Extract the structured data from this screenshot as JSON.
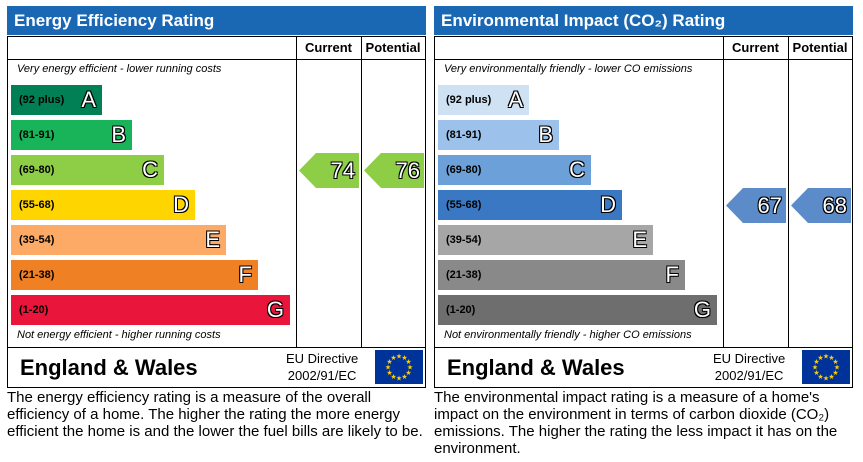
{
  "chart_data": [
    {
      "type": "bar",
      "title": "Energy Efficiency Rating",
      "columns": [
        "Current",
        "Potential"
      ],
      "top_caption": "Very energy efficient - lower running costs",
      "bottom_caption": "Not energy efficient - higher running costs",
      "bands": [
        {
          "range": "(92 plus)",
          "letter": "A",
          "color": "#008054"
        },
        {
          "range": "(81-91)",
          "letter": "B",
          "color": "#19b459"
        },
        {
          "range": "(69-80)",
          "letter": "C",
          "color": "#8dce46"
        },
        {
          "range": "(55-68)",
          "letter": "D",
          "color": "#ffd500"
        },
        {
          "range": "(39-54)",
          "letter": "E",
          "color": "#fcaa65"
        },
        {
          "range": "(21-38)",
          "letter": "F",
          "color": "#ef8023"
        },
        {
          "range": "(1-20)",
          "letter": "G",
          "color": "#e9153b"
        }
      ],
      "current": {
        "value": 74,
        "band": "C",
        "color": "#8dce46"
      },
      "potential": {
        "value": 76,
        "band": "C",
        "color": "#8dce46"
      },
      "region": "England & Wales",
      "directive": [
        "EU Directive",
        "2002/91/EC"
      ],
      "description": "The energy efficiency rating is a measure of the overall efficiency of a home. The higher the rating the more energy efficient the home is and the lower the fuel bills are likely to be."
    },
    {
      "type": "bar",
      "title": "Environmental Impact (CO₂) Rating",
      "columns": [
        "Current",
        "Potential"
      ],
      "top_caption": "Very environmentally friendly - lower CO  emissions",
      "bottom_caption": "Not environmentally friendly - higher CO  emissions",
      "bands": [
        {
          "range": "(92 plus)",
          "letter": "A",
          "color": "#cfe2f3"
        },
        {
          "range": "(81-91)",
          "letter": "B",
          "color": "#9cc1ea"
        },
        {
          "range": "(69-80)",
          "letter": "C",
          "color": "#6ca0d9"
        },
        {
          "range": "(55-68)",
          "letter": "D",
          "color": "#3a78c3"
        },
        {
          "range": "(39-54)",
          "letter": "E",
          "color": "#a6a6a6"
        },
        {
          "range": "(21-38)",
          "letter": "F",
          "color": "#898989"
        },
        {
          "range": "(1-20)",
          "letter": "G",
          "color": "#6e6e6e"
        }
      ],
      "current": {
        "value": 67,
        "band": "D",
        "color": "#5b8cc9"
      },
      "potential": {
        "value": 68,
        "band": "D",
        "color": "#5b8cc9"
      },
      "region": "England & Wales",
      "directive": [
        "EU Directive",
        "2002/91/EC"
      ],
      "description": "The environmental impact rating is a measure of a home's impact on the environment in terms of carbon dioxide (CO₂) emissions. The higher the rating the less impact it has on the environment."
    }
  ],
  "colors": {
    "header": "#1a67b3",
    "eu_flag": "#003399",
    "eu_stars": "#ffcc00"
  },
  "icons": {
    "eu_flag": "eu-flag-icon"
  }
}
